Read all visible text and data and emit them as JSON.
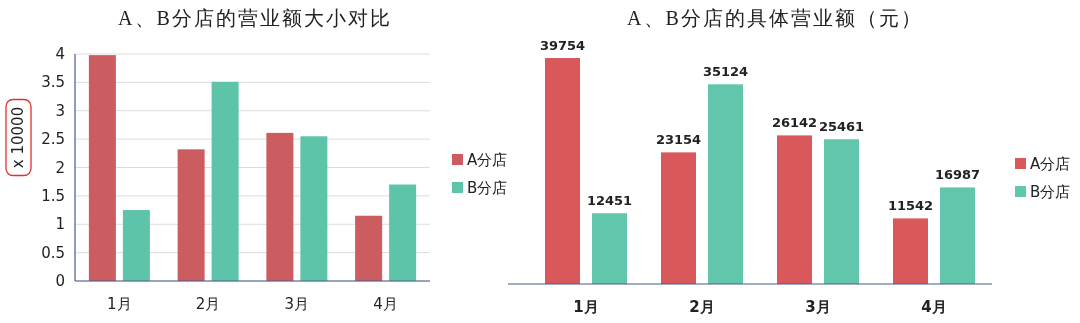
{
  "chart_data": [
    {
      "type": "bar",
      "title": "A、B分店的营业额大小对比",
      "ylabel": "x 10000",
      "categories": [
        "1月",
        "2月",
        "3月",
        "4月"
      ],
      "series": [
        {
          "name": "A分店",
          "color": "#cb5c60",
          "values": [
            3.98,
            2.32,
            2.61,
            1.15
          ]
        },
        {
          "name": "B分店",
          "color": "#5dc3a9",
          "values": [
            1.25,
            3.51,
            2.55,
            1.7
          ]
        }
      ],
      "ylim": [
        0,
        4
      ],
      "yticks": [
        0,
        0.5,
        1,
        1.5,
        2,
        2.5,
        3,
        3.5,
        4
      ],
      "grid": "y",
      "legend": "right"
    },
    {
      "type": "bar",
      "title": "A、B分店的具体营业额（元）",
      "categories": [
        "1月",
        "2月",
        "3月",
        "4月"
      ],
      "series": [
        {
          "name": "A分店",
          "color": "#d9585b",
          "values": [
            39754,
            23154,
            26142,
            11542
          ]
        },
        {
          "name": "B分店",
          "color": "#62c6ad",
          "values": [
            12451,
            35124,
            25461,
            16987
          ]
        }
      ],
      "data_labels": true,
      "legend": "right"
    }
  ]
}
